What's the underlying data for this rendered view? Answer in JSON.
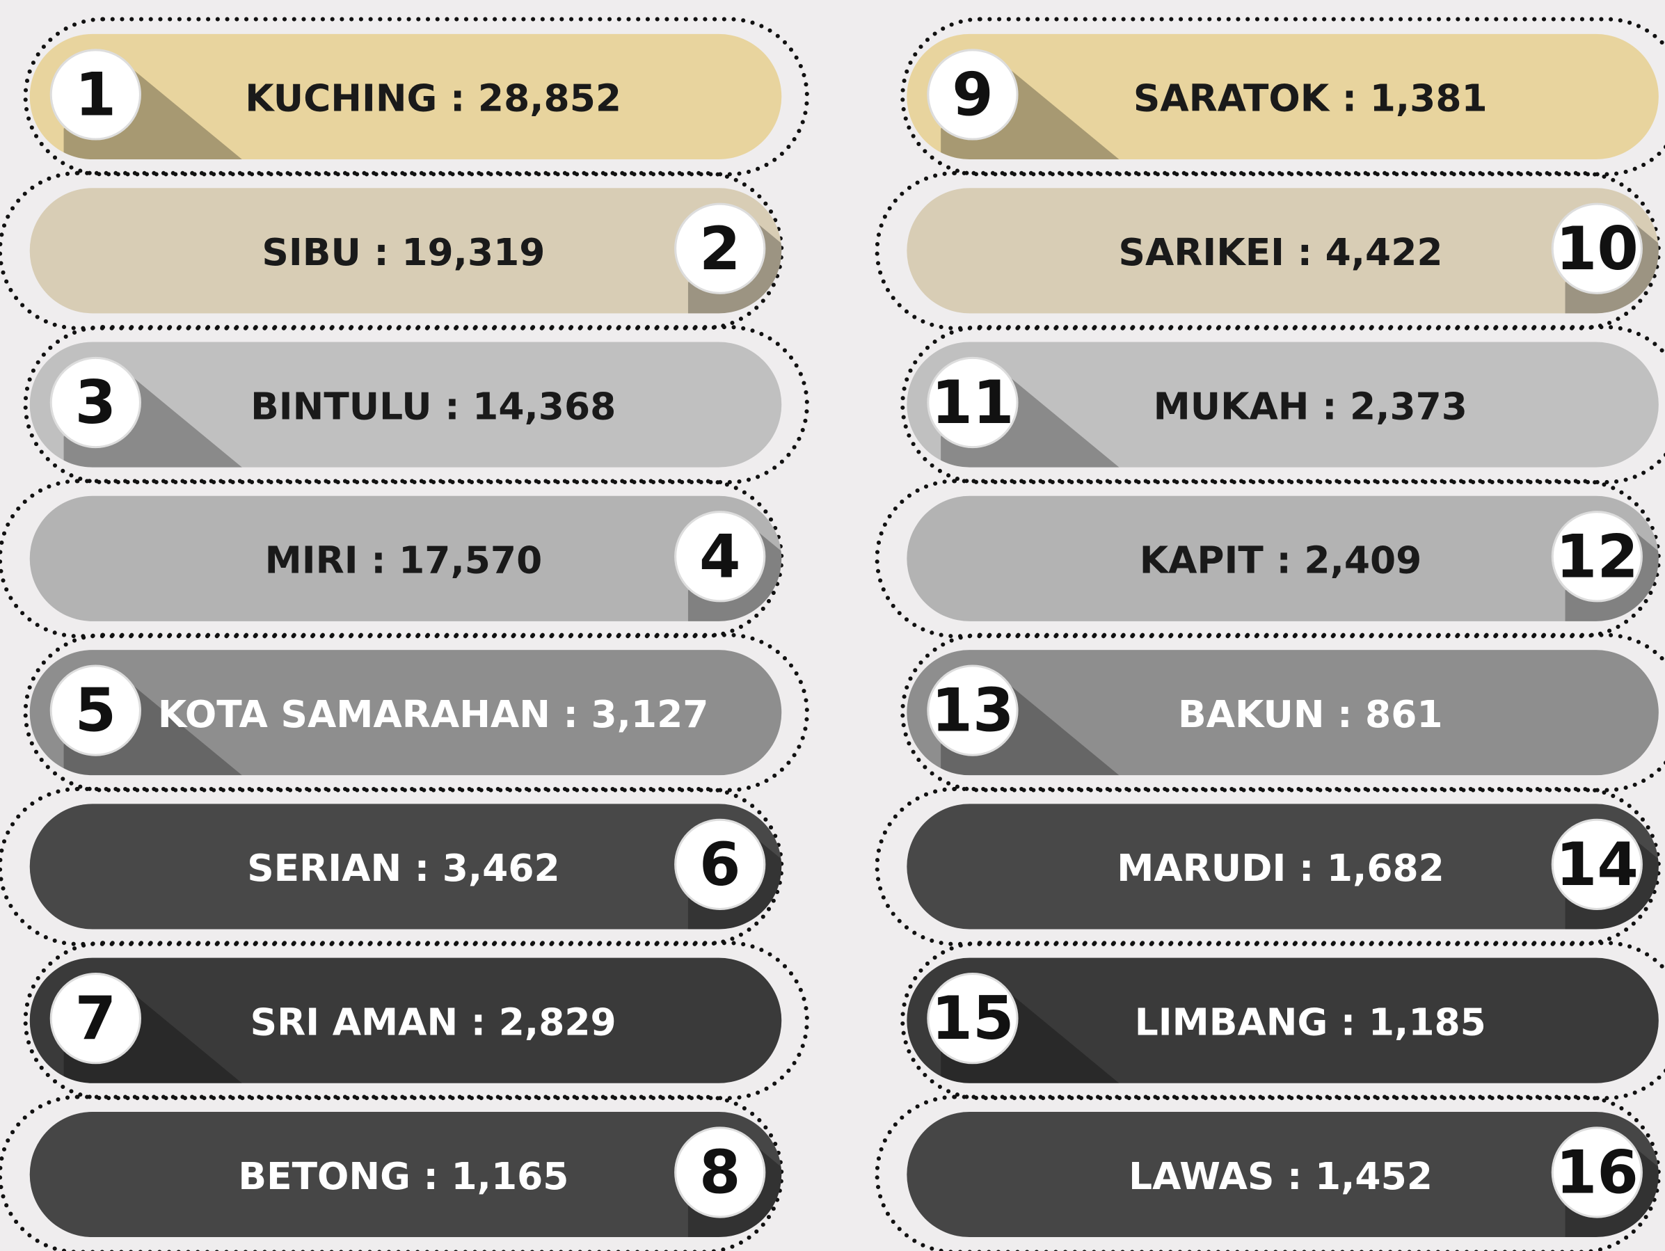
{
  "items": [
    {
      "rank": 1,
      "text": "KUCHING : 28,852"
    },
    {
      "rank": 2,
      "text": "SIBU : 19,319"
    },
    {
      "rank": 3,
      "text": "BINTULU : 14,368"
    },
    {
      "rank": 4,
      "text": "MIRI : 17,570"
    },
    {
      "rank": 5,
      "text": "KOTA SAMARAHAN : 3,127"
    },
    {
      "rank": 6,
      "text": "SERIAN : 3,462"
    },
    {
      "rank": 7,
      "text": "SRI AMAN : 2,829"
    },
    {
      "rank": 8,
      "text": "BETONG : 1,165"
    },
    {
      "rank": 9,
      "text": "SARATOK : 1,381"
    },
    {
      "rank": 10,
      "text": "SARIKEI : 4,422"
    },
    {
      "rank": 11,
      "text": "MUKAH : 2,373"
    },
    {
      "rank": 12,
      "text": "KAPIT : 2,409"
    },
    {
      "rank": 13,
      "text": "BAKUN : 861"
    },
    {
      "rank": 14,
      "text": "MARUDI : 1,682"
    },
    {
      "rank": 15,
      "text": "LIMBANG : 1,185"
    },
    {
      "rank": 16,
      "text": "LAWAS : 1,452"
    }
  ]
}
